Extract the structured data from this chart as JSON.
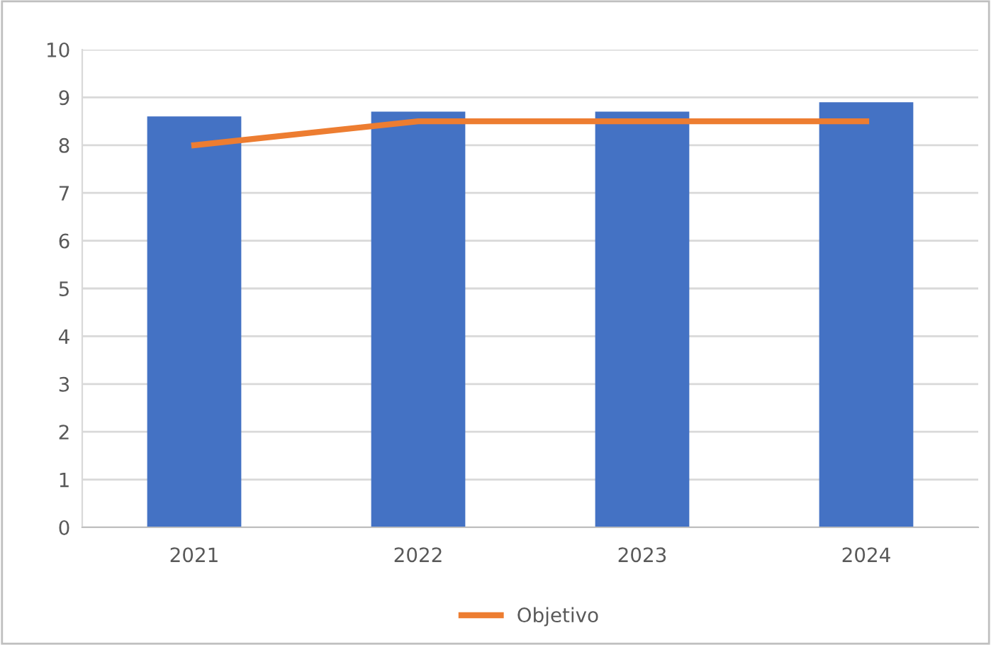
{
  "chart_data": {
    "type": "bar",
    "categories": [
      "2021",
      "2022",
      "2023",
      "2024"
    ],
    "series": [
      {
        "color": "#4472c4",
        "values": [
          8.6,
          8.7,
          8.7,
          8.9
        ]
      },
      {
        "type": "line",
        "name": "Objetivo",
        "color": "#ed7d31",
        "values": [
          8.0,
          8.5,
          8.5,
          8.5
        ],
        "marker": "none",
        "line_style": "solid"
      }
    ],
    "ylim": [
      0,
      10
    ],
    "yticks": [
      0,
      1,
      2,
      3,
      4,
      5,
      6,
      7,
      8,
      9,
      10
    ],
    "grid": "y",
    "legend": "bottom"
  }
}
